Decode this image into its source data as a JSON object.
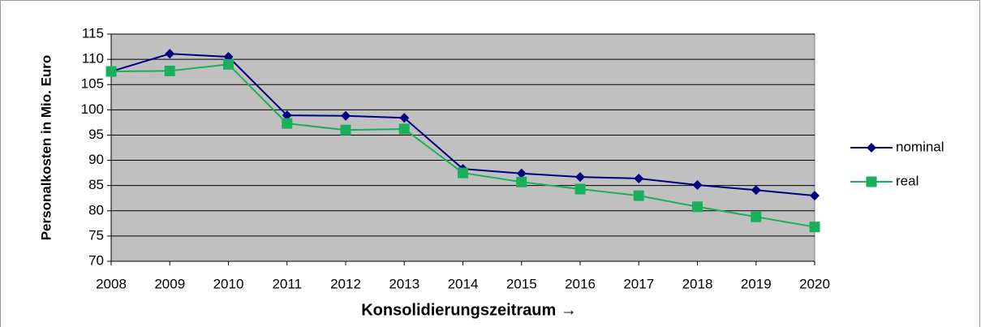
{
  "chart_data": {
    "type": "line",
    "x_label": "Konsolidierungszeitraum →",
    "y_label": "Personalkosten in Mio. Euro",
    "categories": [
      "2008",
      "2009",
      "2010",
      "2011",
      "2012",
      "2013",
      "2014",
      "2015",
      "2016",
      "2017",
      "2018",
      "2019",
      "2020"
    ],
    "series": [
      {
        "name": "nominal",
        "color": "#000080",
        "marker": "diamond",
        "values": [
          107.6,
          111.1,
          110.5,
          98.9,
          98.8,
          98.4,
          88.3,
          87.4,
          86.7,
          86.4,
          85.1,
          84.1,
          83.0
        ]
      },
      {
        "name": "real",
        "color": "#1aaf5d",
        "marker": "square",
        "values": [
          107.6,
          107.7,
          109.0,
          97.3,
          96.0,
          96.2,
          87.5,
          85.7,
          84.3,
          83.0,
          80.8,
          78.8,
          76.8
        ]
      }
    ],
    "ylim": [
      70,
      115
    ],
    "yticks": [
      70,
      75,
      80,
      85,
      90,
      95,
      100,
      105,
      110,
      115
    ],
    "grid": true,
    "legend": "right"
  }
}
